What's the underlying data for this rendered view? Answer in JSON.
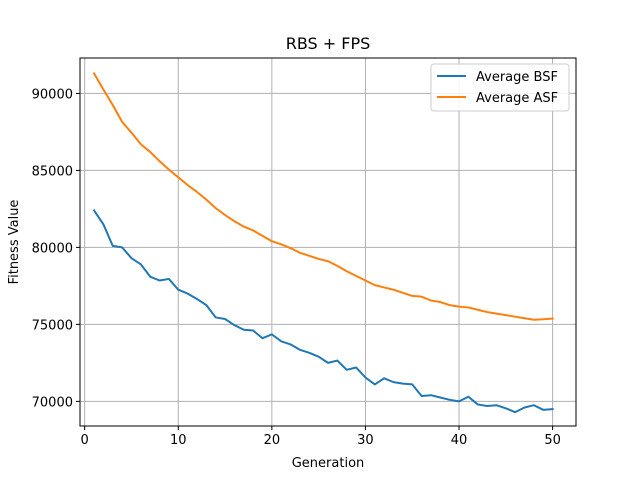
{
  "chart_data": {
    "type": "line",
    "title": "RBS + FPS",
    "xlabel": "Generation",
    "ylabel": "Fitness Value",
    "xlim": [
      -0.5,
      52.5
    ],
    "ylim": [
      68400,
      92300
    ],
    "xticks": [
      0,
      10,
      20,
      30,
      40,
      50
    ],
    "yticks": [
      70000,
      75000,
      80000,
      85000,
      90000
    ],
    "grid": true,
    "legend_position": "top-right",
    "x": [
      1,
      2,
      3,
      4,
      5,
      6,
      7,
      8,
      9,
      10,
      11,
      12,
      13,
      14,
      15,
      16,
      17,
      18,
      19,
      20,
      21,
      22,
      23,
      24,
      25,
      26,
      27,
      28,
      29,
      30,
      31,
      32,
      33,
      34,
      35,
      36,
      37,
      38,
      39,
      40,
      41,
      42,
      43,
      44,
      45,
      46,
      47,
      48,
      49,
      50
    ],
    "series": [
      {
        "name": "Average BSF",
        "color": "#1f77b4",
        "values": [
          82400,
          81500,
          80100,
          80000,
          79300,
          78900,
          78100,
          77850,
          77950,
          77250,
          77000,
          76650,
          76250,
          75450,
          75350,
          74950,
          74650,
          74600,
          74100,
          74350,
          73900,
          73700,
          73350,
          73150,
          72900,
          72500,
          72650,
          72050,
          72200,
          71550,
          71100,
          71500,
          71250,
          71150,
          71100,
          70350,
          70400,
          70250,
          70100,
          70000,
          70300,
          69800,
          69700,
          69750,
          69550,
          69300,
          69600,
          69750,
          69450,
          69500
        ]
      },
      {
        "name": "Average ASF",
        "color": "#ff7f0e",
        "values": [
          91300,
          90250,
          89250,
          88150,
          87450,
          86700,
          86200,
          85600,
          85050,
          84550,
          84050,
          83600,
          83100,
          82550,
          82100,
          81700,
          81350,
          81100,
          80750,
          80400,
          80200,
          79950,
          79650,
          79450,
          79250,
          79100,
          78800,
          78450,
          78150,
          77850,
          77550,
          77400,
          77250,
          77050,
          76850,
          76800,
          76550,
          76450,
          76250,
          76150,
          76100,
          75950,
          75800,
          75700,
          75600,
          75500,
          75400,
          75300,
          75330,
          75380
        ]
      }
    ]
  }
}
